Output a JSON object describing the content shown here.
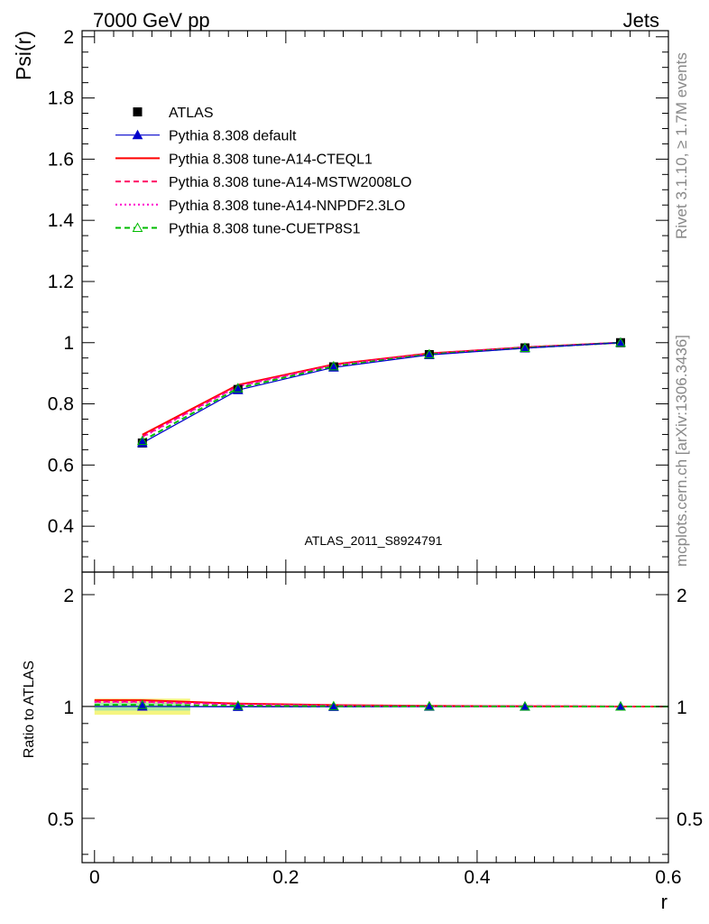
{
  "header": {
    "left": "7000 GeV pp",
    "right": "Jets"
  },
  "side_texts": {
    "rivet": "Rivet 3.1.10, ≥ 1.7M events",
    "mcplots": "mcplots.cern.ch [arXiv:1306.3436]"
  },
  "chart_data": [
    {
      "type": "line",
      "ylabel": "Psi(r)",
      "xlabel": "",
      "xlim": [
        -0.013,
        0.6
      ],
      "ylim": [
        0.25,
        2.02
      ],
      "yticks": [
        0.4,
        0.6,
        0.8,
        1.0,
        1.2,
        1.4,
        1.6,
        1.8,
        2.0
      ],
      "ytick_labels": [
        "0.4",
        "0.6",
        "0.8",
        "1",
        "1.2",
        "1.4",
        "1.6",
        "1.8",
        "2"
      ],
      "watermark": "ATLAS_2011_S8924791",
      "legend_position": "top-left",
      "x": [
        0.05,
        0.15,
        0.25,
        0.35,
        0.45,
        0.55
      ],
      "series": [
        {
          "name": "ATLAS",
          "style": "data",
          "color": "#000000",
          "values": [
            0.672,
            0.847,
            0.921,
            0.961,
            0.983,
            1.0
          ]
        },
        {
          "name": "Pythia 8.308 default",
          "style": "solid-triangle",
          "color": "#0000cc",
          "values": [
            0.672,
            0.845,
            0.919,
            0.96,
            0.982,
            1.0
          ]
        },
        {
          "name": "Pythia 8.308 tune-A14-CTEQL1",
          "style": "solid",
          "color": "#ff0000",
          "values": [
            0.699,
            0.862,
            0.929,
            0.965,
            0.985,
            1.0
          ]
        },
        {
          "name": "Pythia 8.308 tune-A14-MSTW2008LO",
          "style": "dashed",
          "color": "#ff0066",
          "values": [
            0.693,
            0.859,
            0.927,
            0.964,
            0.985,
            1.0
          ]
        },
        {
          "name": "Pythia 8.308 tune-A14-NNPDF2.3LO",
          "style": "dotted",
          "color": "#ff00cc",
          "values": [
            0.691,
            0.857,
            0.926,
            0.963,
            0.984,
            1.0
          ]
        },
        {
          "name": "Pythia 8.308 tune-CUETP8S1",
          "style": "dashed-open-triangle",
          "color": "#00bb00",
          "values": [
            0.679,
            0.851,
            0.923,
            0.962,
            0.983,
            1.0
          ]
        }
      ]
    },
    {
      "type": "line",
      "ylabel": "Ratio to ATLAS",
      "xlabel": "r",
      "xlim": [
        -0.013,
        0.6
      ],
      "ylim": [
        0.38,
        2.3
      ],
      "yscale": "log",
      "yticks": [
        0.5,
        1,
        2
      ],
      "ytick_labels": [
        "0.5",
        "1",
        "2"
      ],
      "xticks": [
        0,
        0.2,
        0.4,
        0.6
      ],
      "xtick_labels": [
        "0",
        "0.2",
        "0.4",
        "0.6"
      ],
      "x": [
        0.05,
        0.15,
        0.25,
        0.35,
        0.45,
        0.55
      ],
      "band": {
        "x": [
          0.0,
          0.1
        ],
        "outer": [
          0.95,
          1.05
        ],
        "inner": [
          0.975,
          1.025
        ],
        "outer_color": "#f5f580",
        "inner_color": "#a8e8a8"
      },
      "series": [
        {
          "name": "Pythia 8.308 default",
          "color": "#0000cc",
          "values": [
            1.0,
            0.998,
            0.998,
            0.999,
            0.999,
            1.0
          ]
        },
        {
          "name": "Pythia 8.308 tune-A14-CTEQL1",
          "color": "#ff0000",
          "values": [
            1.04,
            1.018,
            1.009,
            1.004,
            1.002,
            1.0
          ]
        },
        {
          "name": "Pythia 8.308 tune-A14-MSTW2008LO",
          "color": "#ff0066",
          "values": [
            1.031,
            1.014,
            1.007,
            1.003,
            1.002,
            1.0
          ]
        },
        {
          "name": "Pythia 8.308 tune-A14-NNPDF2.3LO",
          "color": "#ff00cc",
          "values": [
            1.028,
            1.012,
            1.005,
            1.002,
            1.001,
            1.0
          ]
        },
        {
          "name": "Pythia 8.308 tune-CUETP8S1",
          "color": "#00bb00",
          "values": [
            1.01,
            1.005,
            1.002,
            1.001,
            1.0,
            1.0
          ]
        }
      ]
    }
  ]
}
